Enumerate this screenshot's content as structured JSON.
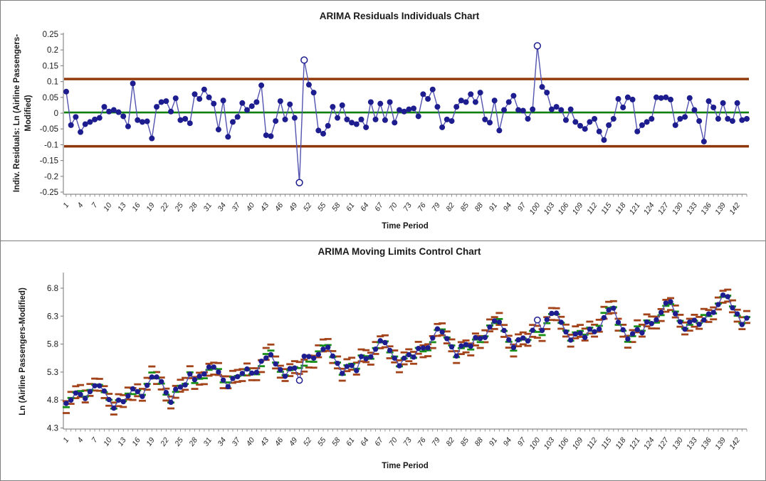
{
  "colors": {
    "marker": "#1d1d8f",
    "series_line": "#5353b0",
    "limit_line": "#8e3606",
    "center_line": "#0e7e0e",
    "moving_limit_dash": "#a3431a",
    "moving_center_dash": "#189018",
    "axis": "#8c8c8c",
    "tick_text": "#1a1a1a"
  },
  "chart_data": [
    {
      "type": "line",
      "title": "ARIMA Residuals Individuals Chart",
      "x_axis_title": "Time Period",
      "y_axis_title": "Indiv. Residuals: Ln (Airline Passengers-Modified)",
      "y_axis_title_lines": [
        "Indiv. Residuals: Ln (Airline Passengers-",
        "Modified)"
      ],
      "ylim": [
        -0.25,
        0.25
      ],
      "y_ticks": [
        {
          "v": 0.25,
          "t": "0.25"
        },
        {
          "v": 0.2,
          "t": "0.2"
        },
        {
          "v": 0.15,
          "t": "0.15"
        },
        {
          "v": 0.1,
          "t": "0.1"
        },
        {
          "v": 0.05,
          "t": "0.05"
        },
        {
          "v": 0,
          "t": "0"
        },
        {
          "v": -0.05,
          "t": "-0.05"
        },
        {
          "v": -0.1,
          "t": "-0.1"
        },
        {
          "v": -0.15,
          "t": "-0.15"
        },
        {
          "v": -0.2,
          "t": "-0.2"
        },
        {
          "v": -0.25,
          "t": "-0.25"
        }
      ],
      "x_start": 1,
      "x_count": 144,
      "x_label_step": 3,
      "x_label_max": 142,
      "ucl": 0.108,
      "cl": 0.002,
      "lcl": -0.105,
      "out_of_control": [
        50,
        51,
        100
      ],
      "values": [
        0.068,
        -0.038,
        -0.012,
        -0.06,
        -0.035,
        -0.028,
        -0.02,
        -0.015,
        0.02,
        0.005,
        0.01,
        0.003,
        -0.01,
        -0.042,
        0.094,
        -0.022,
        -0.028,
        -0.026,
        -0.08,
        0.02,
        0.035,
        0.038,
        0.005,
        0.047,
        -0.022,
        -0.018,
        -0.032,
        0.06,
        0.045,
        0.075,
        0.05,
        0.03,
        -0.052,
        0.04,
        -0.075,
        -0.028,
        -0.012,
        0.032,
        0.01,
        0.022,
        0.035,
        0.088,
        -0.07,
        -0.073,
        -0.025,
        0.038,
        -0.02,
        0.028,
        -0.015,
        -0.22,
        0.168,
        0.09,
        0.065,
        -0.055,
        -0.065,
        -0.04,
        0.02,
        -0.015,
        0.025,
        -0.02,
        -0.03,
        -0.035,
        -0.02,
        -0.045,
        0.035,
        -0.02,
        0.03,
        -0.022,
        0.035,
        -0.03,
        0.01,
        0.005,
        0.012,
        0.015,
        -0.01,
        0.06,
        0.045,
        0.075,
        0.02,
        -0.045,
        -0.02,
        -0.025,
        0.02,
        0.04,
        0.035,
        0.06,
        0.035,
        0.065,
        -0.02,
        -0.03,
        0.04,
        -0.055,
        0.01,
        0.035,
        0.055,
        0.01,
        0.008,
        -0.018,
        0.012,
        0.213,
        0.083,
        0.065,
        0.012,
        0.02,
        0.01,
        -0.022,
        0.012,
        -0.028,
        -0.04,
        -0.05,
        -0.028,
        -0.018,
        -0.058,
        -0.085,
        -0.038,
        -0.018,
        0.045,
        0.018,
        0.05,
        0.043,
        -0.058,
        -0.038,
        -0.028,
        -0.018,
        0.05,
        0.048,
        0.05,
        0.043,
        -0.038,
        -0.018,
        -0.012,
        0.048,
        0.01,
        -0.025,
        -0.09,
        0.038,
        0.018,
        -0.018,
        0.032,
        -0.018,
        -0.025,
        0.032,
        -0.022,
        -0.018
      ]
    },
    {
      "type": "line",
      "title": "ARIMA Moving Limits Control Chart",
      "x_axis_title": "Time Period",
      "y_axis_title": "Ln (Airline Passengers-Modified)",
      "ylim": [
        4.3,
        7.05
      ],
      "y_ticks": [
        {
          "v": 6.8,
          "t": "6.8"
        },
        {
          "v": 6.3,
          "t": "6.3"
        },
        {
          "v": 5.8,
          "t": "5.8"
        },
        {
          "v": 5.3,
          "t": "5.3"
        },
        {
          "v": 4.8,
          "t": "4.8"
        },
        {
          "v": 4.3,
          "t": "4.3"
        }
      ],
      "x_start": 1,
      "x_count": 144,
      "x_label_step": 3,
      "x_label_max": 142,
      "ucl_offset": 0.108,
      "lcl_offset": 0.105,
      "center_note": "moving center line = actual - residual (residuals from chart 1); moving limits = center +/- offsets",
      "out_of_control": [
        50,
        100
      ],
      "values": [
        4.74,
        4.799,
        4.926,
        4.9,
        4.827,
        4.951,
        5.055,
        5.055,
        4.96,
        4.808,
        4.656,
        4.799,
        4.77,
        4.873,
        5.0,
        4.951,
        4.864,
        5.063,
        5.212,
        5.212,
        5.129,
        4.934,
        4.76,
        4.992,
        5.032,
        5.07,
        5.264,
        5.164,
        5.225,
        5.264,
        5.39,
        5.39,
        5.301,
        5.157,
        5.04,
        5.185,
        5.218,
        5.276,
        5.355,
        5.282,
        5.295,
        5.493,
        5.553,
        5.611,
        5.445,
        5.343,
        5.225,
        5.361,
        5.372,
        5.152,
        5.582,
        5.577,
        5.548,
        5.615,
        5.709,
        5.743,
        5.587,
        5.456,
        5.276,
        5.401,
        5.418,
        5.325,
        5.577,
        5.538,
        5.573,
        5.709,
        5.861,
        5.827,
        5.687,
        5.548,
        5.412,
        5.548,
        5.611,
        5.568,
        5.722,
        5.73,
        5.734,
        5.909,
        6.072,
        6.018,
        5.898,
        5.751,
        5.587,
        5.767,
        5.792,
        5.763,
        5.916,
        5.901,
        5.919,
        6.103,
        6.215,
        6.193,
        6.044,
        5.876,
        5.739,
        5.876,
        5.909,
        5.857,
        6.047,
        6.231,
        6.044,
        6.239,
        6.349,
        6.353,
        6.19,
        6.018,
        5.872,
        5.981,
        5.995,
        5.919,
        6.066,
        6.021,
        6.069,
        6.273,
        6.41,
        6.442,
        6.19,
        6.056,
        5.891,
        5.985,
        6.059,
        6.001,
        6.195,
        6.167,
        6.234,
        6.366,
        6.534,
        6.557,
        6.344,
        6.198,
        6.066,
        6.193,
        6.226,
        6.153,
        6.231,
        6.339,
        6.366,
        6.507,
        6.677,
        6.648,
        6.449,
        6.339,
        6.15,
        6.265
      ]
    }
  ]
}
